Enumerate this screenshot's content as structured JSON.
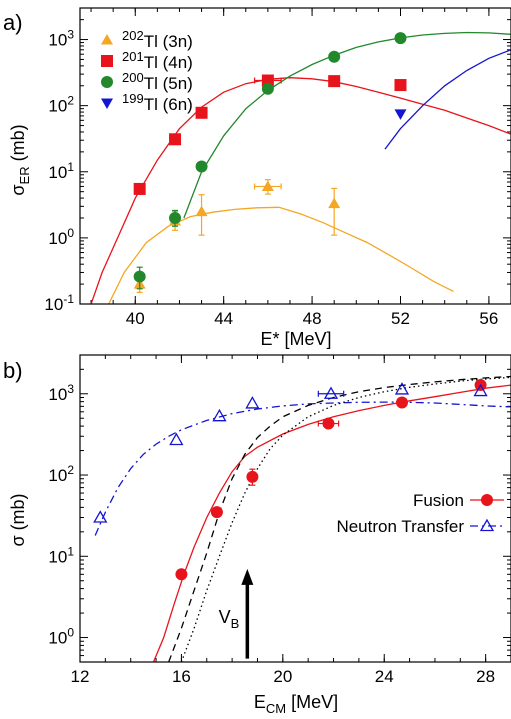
{
  "chart_data": [
    {
      "panel_label": "a)",
      "type": "scatter",
      "xlabel": "E* [MeV]",
      "ylabel": "σER (mb)",
      "ylabel_main": "σ",
      "ylabel_sub": "ER",
      "ylabel_unit": " (mb)",
      "xlim": [
        37.5,
        57
      ],
      "ylim": [
        0.1,
        3000
      ],
      "yscale": "log",
      "xticks": [
        40,
        44,
        48,
        52,
        56
      ],
      "xtick_labels": [
        "40",
        "44",
        "48",
        "52",
        "56"
      ],
      "yticks": [
        0.1,
        1,
        10,
        100,
        1000
      ],
      "ytick_labels": [
        {
          "base": "10",
          "exp": "-1"
        },
        {
          "base": "10",
          "exp": "0"
        },
        {
          "base": "10",
          "exp": "1"
        },
        {
          "base": "10",
          "exp": "2"
        },
        {
          "base": "10",
          "exp": "3"
        }
      ],
      "legend_position": "top-left",
      "series": [
        {
          "name": "202Tl (3n)",
          "mass": "202",
          "element": "Tl (3n)",
          "color": "#f5a623",
          "marker": "triangle-up",
          "points": [
            {
              "x": 40.2,
              "y": 0.2,
              "ylo": 0.15,
              "yhi": 0.26
            },
            {
              "x": 41.8,
              "y": 1.8,
              "ylo": 1.3,
              "yhi": 2.5
            },
            {
              "x": 43.0,
              "y": 2.5,
              "ylo": 1.1,
              "yhi": 4.5
            },
            {
              "x": 46.0,
              "y": 6.0,
              "ylo": 4.6,
              "yhi": 7.6,
              "xerr": 0.6
            },
            {
              "x": 49.0,
              "y": 3.3,
              "ylo": 1.1,
              "yhi": 5.6
            }
          ],
          "curve": [
            [
              38.8,
              0.1
            ],
            [
              39.5,
              0.3
            ],
            [
              40.5,
              0.85
            ],
            [
              41.5,
              1.5
            ],
            [
              42.5,
              2.1
            ],
            [
              43.5,
              2.45
            ],
            [
              44.5,
              2.7
            ],
            [
              45.5,
              2.85
            ],
            [
              46.5,
              2.9
            ],
            [
              47.5,
              2.3
            ],
            [
              48.5,
              1.7
            ],
            [
              49.5,
              1.2
            ],
            [
              50.5,
              0.85
            ],
            [
              51.5,
              0.55
            ],
            [
              52.5,
              0.35
            ],
            [
              53.5,
              0.22
            ],
            [
              54.4,
              0.155
            ]
          ]
        },
        {
          "name": "201Tl (4n)",
          "mass": "201",
          "element": "Tl (4n)",
          "color": "#e8141c",
          "marker": "square",
          "points": [
            {
              "x": 40.2,
              "y": 5.5
            },
            {
              "x": 41.8,
              "y": 31
            },
            {
              "x": 43.0,
              "y": 78
            },
            {
              "x": 46.0,
              "y": 240,
              "xerr": 0.6
            },
            {
              "x": 49.0,
              "y": 235
            },
            {
              "x": 52.0,
              "y": 205
            }
          ],
          "curve": [
            [
              38.0,
              0.1
            ],
            [
              38.5,
              0.3
            ],
            [
              39.2,
              1.0
            ],
            [
              40.0,
              4.0
            ],
            [
              41.0,
              15
            ],
            [
              42.0,
              45
            ],
            [
              43.0,
              95
            ],
            [
              44.0,
              160
            ],
            [
              45.0,
              215
            ],
            [
              46.0,
              250
            ],
            [
              47.0,
              265
            ],
            [
              48.0,
              255
            ],
            [
              49.0,
              230
            ],
            [
              50.0,
              195
            ],
            [
              51.0,
              160
            ],
            [
              52.0,
              130
            ],
            [
              53.0,
              105
            ],
            [
              54.0,
              85
            ],
            [
              55.0,
              65
            ],
            [
              56.0,
              50
            ],
            [
              57.0,
              37
            ]
          ]
        },
        {
          "name": "200Tl (5n)",
          "mass": "200",
          "element": "Tl (5n)",
          "color": "#21892b",
          "marker": "circle",
          "points": [
            {
              "x": 40.2,
              "y": 0.26,
              "ylo": 0.17,
              "yhi": 0.36
            },
            {
              "x": 41.8,
              "y": 2.0,
              "ylo": 1.5,
              "yhi": 2.6
            },
            {
              "x": 43.0,
              "y": 12
            },
            {
              "x": 46.0,
              "y": 180
            },
            {
              "x": 49.0,
              "y": 550
            },
            {
              "x": 52.0,
              "y": 1050
            }
          ],
          "curve": [
            [
              42.2,
              2.0
            ],
            [
              43.0,
              10
            ],
            [
              44.0,
              35
            ],
            [
              45.0,
              90
            ],
            [
              46.0,
              170
            ],
            [
              47.0,
              280
            ],
            [
              48.0,
              420
            ],
            [
              49.0,
              580
            ],
            [
              50.0,
              760
            ],
            [
              51.0,
              920
            ],
            [
              52.0,
              1060
            ],
            [
              53.0,
              1170
            ],
            [
              54.0,
              1240
            ],
            [
              55.0,
              1280
            ],
            [
              56.0,
              1260
            ],
            [
              57.0,
              1200
            ]
          ]
        },
        {
          "name": "199Tl (6n)",
          "mass": "199",
          "element": "Tl (6n)",
          "color": "#1414d2",
          "marker": "triangle-down",
          "points": [
            {
              "x": 52.0,
              "y": 75
            }
          ],
          "curve": [
            [
              51.3,
              22
            ],
            [
              52.0,
              45
            ],
            [
              53.0,
              100
            ],
            [
              54.0,
              200
            ],
            [
              55.0,
              340
            ],
            [
              56.0,
              520
            ],
            [
              57.0,
              700
            ]
          ]
        }
      ]
    },
    {
      "panel_label": "b)",
      "type": "scatter",
      "xlabel": "ECM [MeV]",
      "xlabel_main": "E",
      "xlabel_sub": "CM",
      "xlabel_unit": " [MeV]",
      "ylabel": "σ (mb)",
      "xlim": [
        12,
        29
      ],
      "ylim": [
        0.5,
        3000
      ],
      "yscale": "log",
      "xticks": [
        12,
        16,
        20,
        24,
        28
      ],
      "xtick_labels": [
        "12",
        "16",
        "20",
        "24",
        "28"
      ],
      "yticks": [
        1,
        10,
        100,
        1000
      ],
      "ytick_labels": [
        {
          "base": "10",
          "exp": "0"
        },
        {
          "base": "10",
          "exp": "1"
        },
        {
          "base": "10",
          "exp": "2"
        },
        {
          "base": "10",
          "exp": "3"
        }
      ],
      "legend_position": "right",
      "annotation": {
        "main": "V",
        "sub": "B",
        "x": 18.6,
        "y_from": 0.55,
        "y_to": 7
      },
      "series": [
        {
          "name": "Fusion",
          "color": "#e8141c",
          "marker": "circle",
          "line": "solid",
          "points": [
            {
              "x": 16.0,
              "y": 6.0
            },
            {
              "x": 17.4,
              "y": 35
            },
            {
              "x": 18.8,
              "y": 95,
              "ylo": 75,
              "yhi": 118
            },
            {
              "x": 21.8,
              "y": 430,
              "xerr": 0.4
            },
            {
              "x": 24.7,
              "y": 780
            },
            {
              "x": 27.8,
              "y": 1280
            }
          ],
          "curve": [
            [
              14.9,
              0.5
            ],
            [
              15.3,
              1.0
            ],
            [
              15.7,
              2.5
            ],
            [
              16.1,
              6.0
            ],
            [
              16.5,
              13
            ],
            [
              17.0,
              30
            ],
            [
              17.5,
              60
            ],
            [
              18.0,
              110
            ],
            [
              18.5,
              170
            ],
            [
              19.0,
              220
            ],
            [
              20.0,
              320
            ],
            [
              21.0,
              420
            ],
            [
              22.0,
              520
            ],
            [
              23.0,
              620
            ],
            [
              24.0,
              720
            ],
            [
              25.0,
              820
            ],
            [
              26.0,
              920
            ],
            [
              27.0,
              1040
            ],
            [
              28.0,
              1170
            ],
            [
              29.0,
              1280
            ]
          ]
        },
        {
          "name": "Neutron Transfer",
          "color": "#1414d2",
          "marker": "triangle-up-open",
          "line": "dashdot",
          "points": [
            {
              "x": 12.8,
              "y": 30
            },
            {
              "x": 15.8,
              "y": 270
            },
            {
              "x": 17.5,
              "y": 530
            },
            {
              "x": 18.8,
              "y": 760
            },
            {
              "x": 21.9,
              "y": 1000,
              "xerr": 0.5
            },
            {
              "x": 24.7,
              "y": 1130
            },
            {
              "x": 27.8,
              "y": 1080
            }
          ],
          "curve": [
            [
              12.6,
              18
            ],
            [
              13.0,
              35
            ],
            [
              13.5,
              70
            ],
            [
              14.0,
              120
            ],
            [
              14.5,
              180
            ],
            [
              15.0,
              240
            ],
            [
              15.5,
              300
            ],
            [
              16.0,
              360
            ],
            [
              17.0,
              470
            ],
            [
              18.0,
              570
            ],
            [
              19.0,
              650
            ],
            [
              20.0,
              710
            ],
            [
              21.0,
              750
            ],
            [
              22.0,
              770
            ],
            [
              23.0,
              785
            ],
            [
              24.0,
              790
            ],
            [
              25.0,
              785
            ],
            [
              26.0,
              770
            ],
            [
              27.0,
              740
            ],
            [
              28.0,
              710
            ],
            [
              29.0,
              690
            ]
          ]
        },
        {
          "name": "",
          "color": "#000000",
          "line": "dashed",
          "points": [],
          "curve": [
            [
              15.5,
              0.5
            ],
            [
              16.0,
              1.3
            ],
            [
              16.5,
              3.8
            ],
            [
              17.0,
              11
            ],
            [
              17.5,
              35
            ],
            [
              18.0,
              90
            ],
            [
              18.5,
              180
            ],
            [
              19.0,
              290
            ],
            [
              19.5,
              400
            ],
            [
              20.0,
              520
            ],
            [
              21.0,
              720
            ],
            [
              22.0,
              900
            ],
            [
              23.0,
              1060
            ],
            [
              24.0,
              1190
            ],
            [
              25.0,
              1300
            ],
            [
              26.0,
              1400
            ],
            [
              27.0,
              1490
            ],
            [
              28.0,
              1570
            ],
            [
              29.0,
              1630
            ]
          ]
        },
        {
          "name": "",
          "color": "#000000",
          "line": "dotted",
          "points": [],
          "curve": [
            [
              16.0,
              0.5
            ],
            [
              16.5,
              1.3
            ],
            [
              17.0,
              3.8
            ],
            [
              17.5,
              10
            ],
            [
              18.0,
              26
            ],
            [
              18.5,
              60
            ],
            [
              19.0,
              120
            ],
            [
              19.5,
              210
            ],
            [
              20.0,
              310
            ],
            [
              21.0,
              520
            ],
            [
              22.0,
              720
            ],
            [
              23.0,
              900
            ],
            [
              24.0,
              1060
            ],
            [
              25.0,
              1200
            ],
            [
              26.0,
              1320
            ],
            [
              27.0,
              1430
            ],
            [
              28.0,
              1520
            ],
            [
              29.0,
              1590
            ]
          ]
        }
      ]
    }
  ]
}
